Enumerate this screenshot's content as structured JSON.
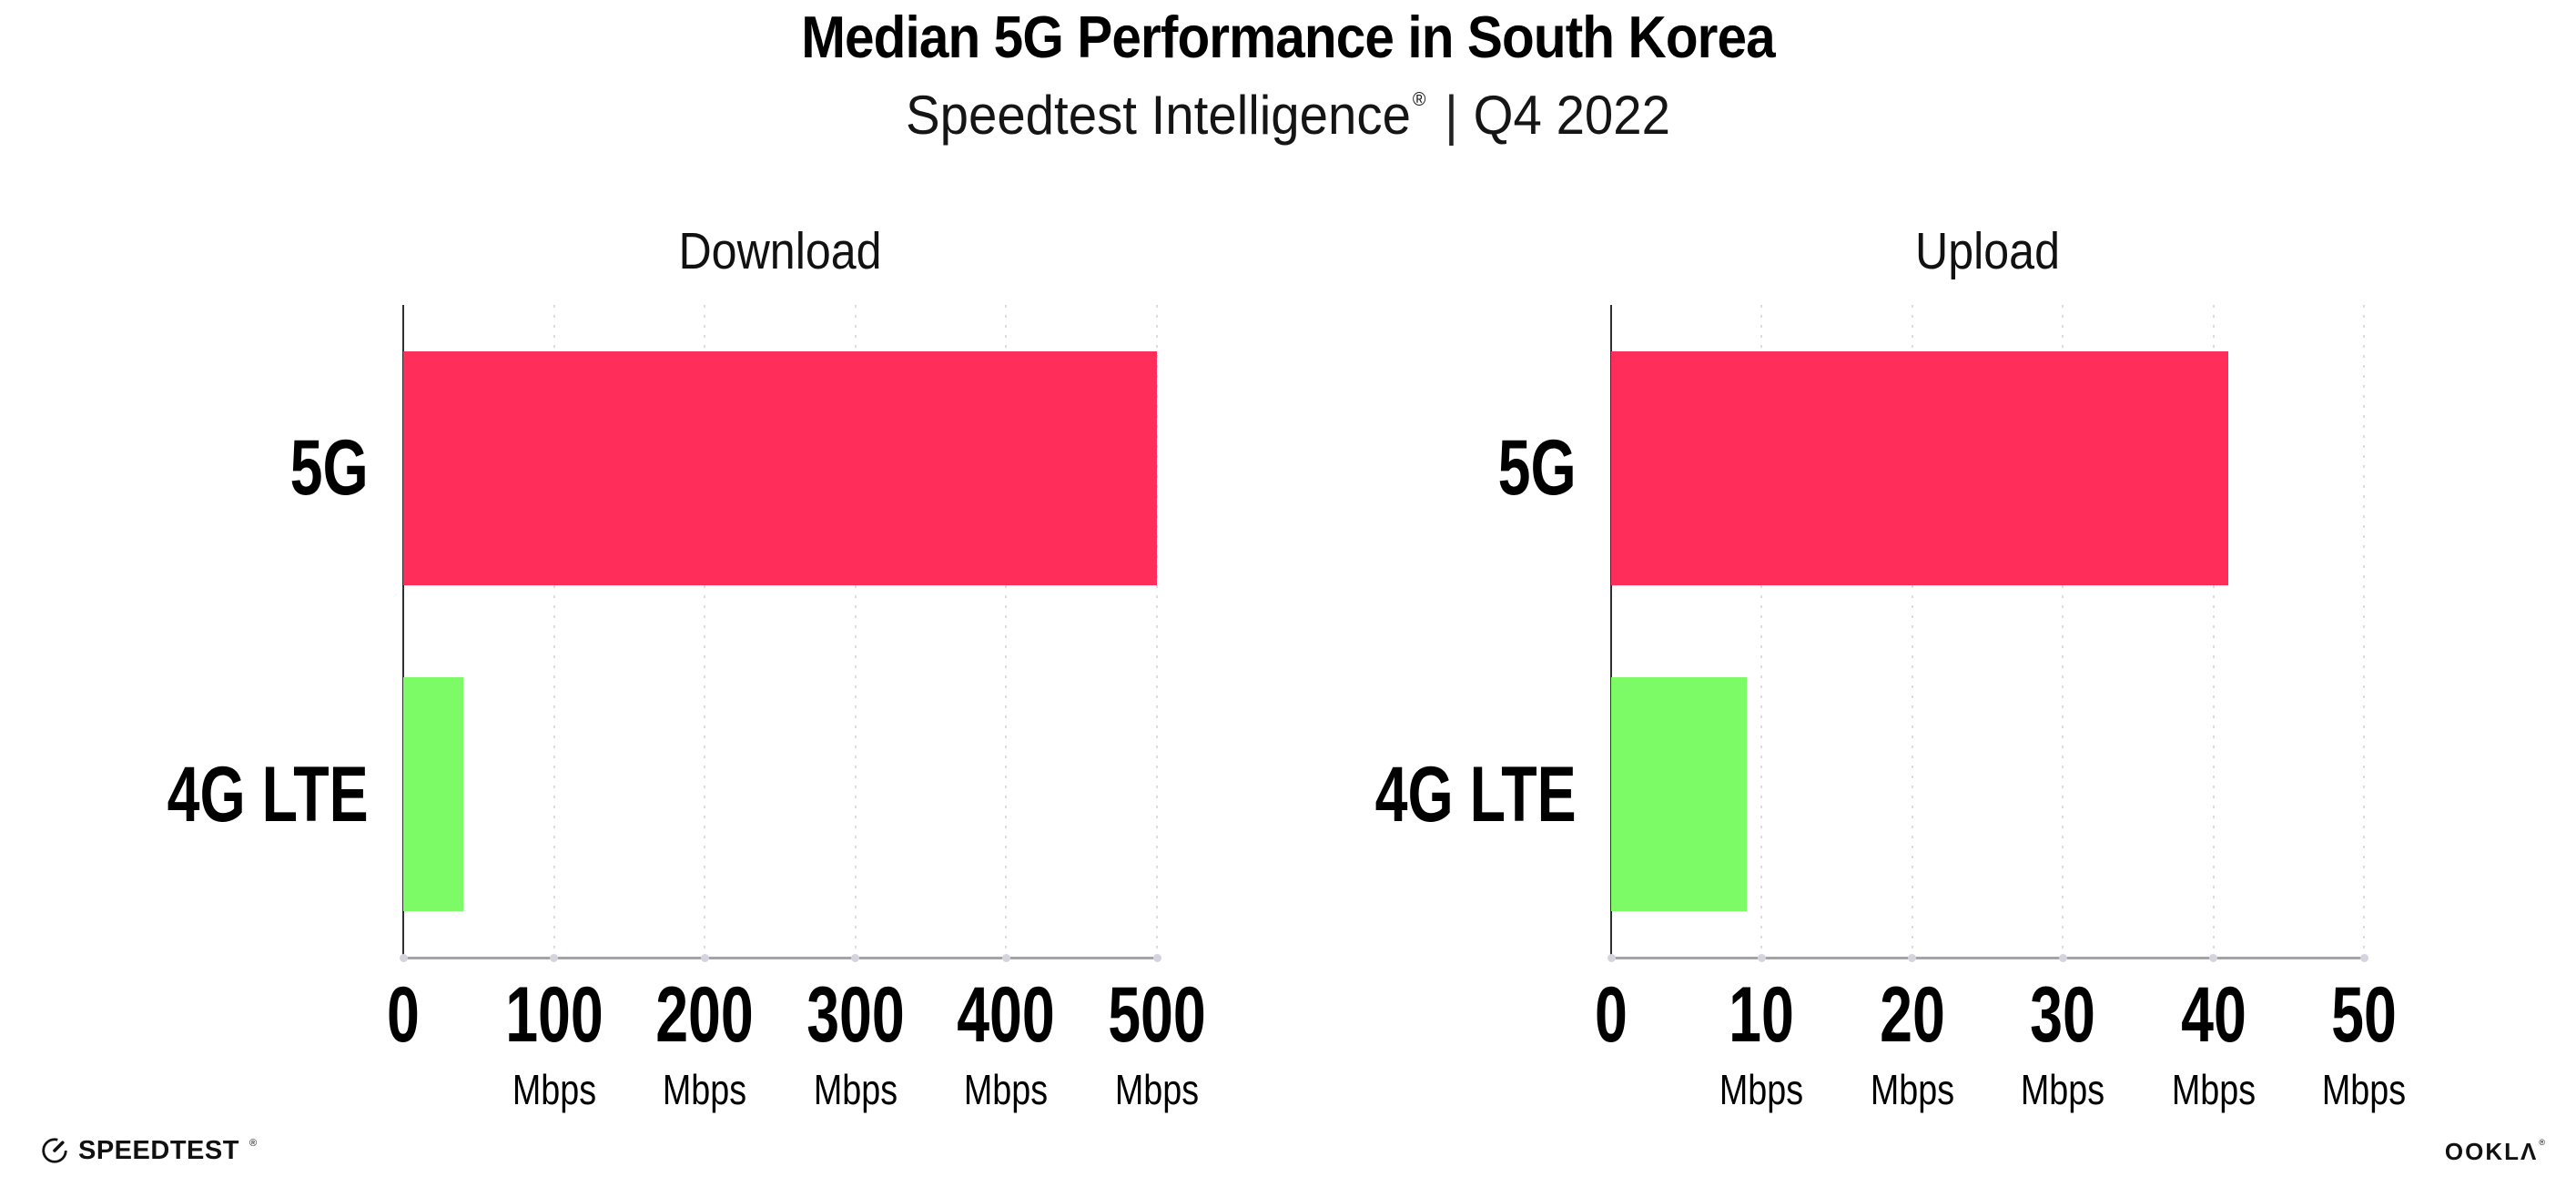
{
  "header": {
    "title": "Median 5G Performance in South Korea",
    "subtitle": {
      "brand": "Speedtest Intelligence",
      "registered": "®",
      "divider": "|",
      "period": "Q4 2022"
    }
  },
  "chart_data": [
    {
      "type": "bar",
      "orientation": "horizontal",
      "title": "Download",
      "categories": [
        "5G",
        "4G LTE"
      ],
      "values": [
        500,
        40
      ],
      "unit": "Mbps",
      "xlim": [
        0,
        500
      ],
      "xticks": [
        0,
        100,
        200,
        300,
        400,
        500
      ],
      "xtick_unit": "Mbps",
      "bar_colors": [
        "#FF2D5A",
        "#7DFB66"
      ],
      "grid": "dotted-vertical",
      "legend": "none"
    },
    {
      "type": "bar",
      "orientation": "horizontal",
      "title": "Upload",
      "categories": [
        "5G",
        "4G LTE"
      ],
      "values": [
        41,
        9
      ],
      "unit": "Mbps",
      "xlim": [
        0,
        50
      ],
      "xticks": [
        0,
        10,
        20,
        30,
        40,
        50
      ],
      "xtick_unit": "Mbps",
      "bar_colors": [
        "#FF2D5A",
        "#7DFB66"
      ],
      "grid": "dotted-vertical",
      "legend": "none"
    }
  ],
  "footer": {
    "speedtest_wordmark": "SPEEDTEST",
    "speedtest_registered": "®",
    "ookla_wordmark": "OOKL",
    "ookla_lambda": "Λ",
    "ookla_registered": "®",
    "icon_names": [
      "speedtest-gauge-icon",
      "ookla-k-glyph"
    ]
  },
  "colors": {
    "bar_5g": "#FF2D5A",
    "bar_4g_lte": "#7DFB66",
    "gridline": "#DCDCE6",
    "x_axis": "#A3A3AB",
    "y_axis": "#2F2F33",
    "text": "#000000"
  }
}
